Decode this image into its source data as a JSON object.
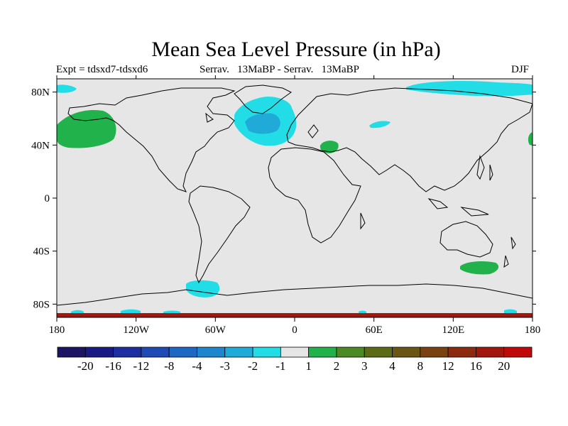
{
  "title": "Mean Sea Level Pressure (in hPa)",
  "experiment_label": "Expt = tdsxd7-tdsxd6",
  "runs_label": "Serrav.   13MaBP - Serrav.   13MaBP",
  "season_label": "DJF",
  "map": {
    "projection": "cylindrical equidistant",
    "lon_range": [
      -180,
      180
    ],
    "lat_range": [
      -90,
      90
    ],
    "background_color": "#e6e6e6",
    "lon_ticks": [
      {
        "value": -180,
        "label": "180"
      },
      {
        "value": -120,
        "label": "120W"
      },
      {
        "value": -60,
        "label": "60W"
      },
      {
        "value": 0,
        "label": "0"
      },
      {
        "value": 60,
        "label": "60E"
      },
      {
        "value": 120,
        "label": "120E"
      },
      {
        "value": 180,
        "label": "180"
      }
    ],
    "lat_ticks": [
      {
        "value": 80,
        "label": "80N"
      },
      {
        "value": 40,
        "label": "40N"
      },
      {
        "value": 0,
        "label": "0"
      },
      {
        "value": -40,
        "label": "40S"
      },
      {
        "value": -80,
        "label": "80S"
      }
    ]
  },
  "colorbar": {
    "colors": [
      "#1e1464",
      "#1a1a84",
      "#1d2fa0",
      "#1f49b4",
      "#1d68c4",
      "#1e86cf",
      "#1faad8",
      "#22dde6",
      "#e6e6e6",
      "#21b24b",
      "#4b8a25",
      "#5e6b16",
      "#6a5612",
      "#7a4210",
      "#8c2a10",
      "#a3160e",
      "#c00a0a"
    ],
    "labels": [
      "-20",
      "-16",
      "-12",
      "-8",
      "-4",
      "-3",
      "-2",
      "-1",
      "1",
      "2",
      "3",
      "4",
      "8",
      "12",
      "16",
      "20"
    ]
  }
}
